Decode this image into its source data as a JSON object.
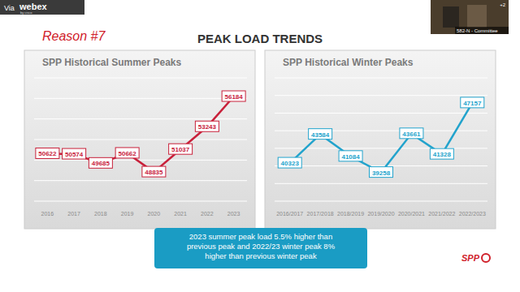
{
  "header": {
    "via": "Via",
    "brand": "webex",
    "brand_sub": "by cisco",
    "reason": "Reason #7",
    "title": "PEAK LOAD TRENDS",
    "video_label": "582-N - Committee",
    "video_count": "+2"
  },
  "chart_data": [
    {
      "type": "line",
      "title": "SPP Historical Summer Peaks",
      "categories": [
        "2016",
        "2017",
        "2018",
        "2019",
        "2020",
        "2021",
        "2022",
        "2023"
      ],
      "values": [
        50622,
        50574,
        49685,
        50662,
        48835,
        51037,
        53243,
        56184
      ],
      "color": "#c8203a",
      "marker": "circle",
      "data_labels": true,
      "grid": true,
      "tick_labels": "x",
      "ylim": [
        46000,
        58000
      ],
      "yticks": [
        46000,
        48000,
        50000,
        52000,
        54000,
        56000,
        58000
      ]
    },
    {
      "type": "line",
      "title": "SPP Historical Winter Peaks",
      "categories": [
        "2016/2017",
        "2017/2018",
        "2018/2019",
        "2019/2020",
        "2020/2021",
        "2021/2022",
        "2022/2023"
      ],
      "values": [
        40323,
        43584,
        41084,
        39258,
        43661,
        41328,
        47157
      ],
      "color": "#22a3cc",
      "marker": "circle",
      "data_labels": true,
      "grid": true,
      "tick_labels": "x",
      "ylim": [
        36000,
        50000
      ],
      "yticks": [
        36000,
        38000,
        40000,
        42000,
        44000,
        46000,
        48000,
        50000
      ]
    }
  ],
  "caption": [
    "2023 summer peak load 5.5% higher than",
    "previous peak and 2022/23 winter peak 8%",
    "higher than previous winter peak"
  ],
  "logo": "SPP"
}
